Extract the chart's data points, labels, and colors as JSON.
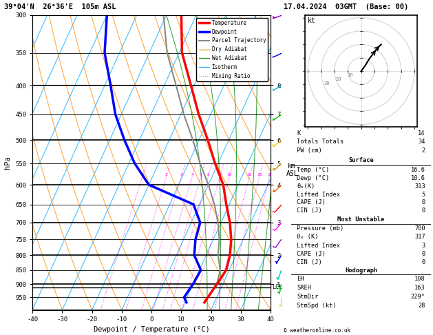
{
  "title_left": "39°04'N  26°36'E  105m ASL",
  "title_right": "17.04.2024  03GMT  (Base: 00)",
  "xlabel": "Dewpoint / Temperature (°C)",
  "ylabel_left": "hPa",
  "xmin": -40,
  "xmax": 40,
  "pmin": 300,
  "pmax": 1000,
  "skew_factor": 45.0,
  "color_temp": "#ff0000",
  "color_dewp": "#0000ff",
  "color_parcel": "#888888",
  "color_dry_adiabat": "#ff8c00",
  "color_wet_adiabat": "#008800",
  "color_isotherm": "#00aaff",
  "color_mixing": "#ff00ff",
  "color_background": "#ffffff",
  "pressure_levels": [
    300,
    350,
    400,
    450,
    500,
    550,
    600,
    650,
    700,
    750,
    800,
    850,
    900,
    950,
    1000
  ],
  "temp_profile_p": [
    300,
    350,
    400,
    450,
    500,
    550,
    600,
    650,
    700,
    750,
    800,
    850,
    900,
    950,
    970
  ],
  "temp_profile_t": [
    -35,
    -29,
    -21,
    -14,
    -7,
    -1,
    5,
    9,
    13,
    16,
    18,
    19,
    18,
    17,
    16.6
  ],
  "dewp_profile_p": [
    300,
    350,
    400,
    450,
    500,
    550,
    600,
    650,
    700,
    750,
    800,
    850,
    900,
    950,
    970
  ],
  "dewp_profile_t": [
    -60,
    -55,
    -48,
    -42,
    -35,
    -28,
    -20,
    -2,
    3,
    4,
    6,
    10.5,
    10,
    9,
    10.6
  ],
  "parcel_profile_p": [
    300,
    350,
    400,
    450,
    500,
    550,
    600,
    650,
    700,
    750,
    800,
    850,
    900,
    950,
    970
  ],
  "parcel_profile_t": [
    -41,
    -34,
    -26,
    -19,
    -12,
    -6,
    0,
    5,
    9,
    12,
    14,
    17,
    18,
    17,
    16.6
  ],
  "lcl_pressure": 912,
  "km_pressures": [
    900,
    800,
    700,
    600,
    550,
    500,
    450,
    400
  ],
  "km_labels": [
    "1",
    "2",
    "3",
    "4",
    "5",
    "6",
    "7",
    "8"
  ],
  "mr_values": [
    1,
    2,
    3,
    4,
    5,
    6,
    8,
    10,
    16,
    20,
    25
  ],
  "legend_items": [
    {
      "label": "Temperature",
      "color": "#ff0000",
      "lw": 2.5,
      "ls": "-"
    },
    {
      "label": "Dewpoint",
      "color": "#0000ff",
      "lw": 2.5,
      "ls": "-"
    },
    {
      "label": "Parcel Trajectory",
      "color": "#888888",
      "lw": 1.5,
      "ls": "-"
    },
    {
      "label": "Dry Adiabat",
      "color": "#ff8c00",
      "lw": 0.9,
      "ls": "-"
    },
    {
      "label": "Wet Adiabat",
      "color": "#008800",
      "lw": 0.9,
      "ls": "-"
    },
    {
      "label": "Isotherm",
      "color": "#00aaff",
      "lw": 0.9,
      "ls": "-"
    },
    {
      "label": "Mixing Ratio",
      "color": "#ff00ff",
      "lw": 0.8,
      "ls": ":"
    }
  ],
  "table_data": {
    "K": "14",
    "Totals Totals": "34",
    "PW (cm)": "2",
    "Surface_Temp": "16.6",
    "Surface_Dewp": "10.6",
    "Surface_theta_e": "313",
    "Surface_LI": "5",
    "Surface_CAPE": "0",
    "Surface_CIN": "0",
    "MU_Pressure": "700",
    "MU_theta_e": "317",
    "MU_LI": "3",
    "MU_CAPE": "0",
    "MU_CIN": "0",
    "EH": "108",
    "SREH": "163",
    "StmDir": "229°",
    "StmSpd": "28"
  },
  "wind_barb_p": [
    300,
    350,
    400,
    450,
    500,
    550,
    600,
    650,
    700,
    750,
    800,
    850,
    900,
    950
  ],
  "wind_barb_spd": [
    25,
    22,
    20,
    18,
    17,
    15,
    13,
    12,
    10,
    8,
    7,
    6,
    5,
    4
  ],
  "wind_barb_dir": [
    250,
    245,
    240,
    235,
    230,
    228,
    225,
    222,
    220,
    215,
    210,
    200,
    190,
    180
  ],
  "wind_barb_colors": [
    "#9900cc",
    "#0000ff",
    "#00cccc",
    "#00cc00",
    "#ffcc00",
    "#cc9900",
    "#ff6600",
    "#ff0000",
    "#ff00ff",
    "#9900cc",
    "#0000ff",
    "#00cccc",
    "#00cc00",
    "#ffcc00"
  ]
}
